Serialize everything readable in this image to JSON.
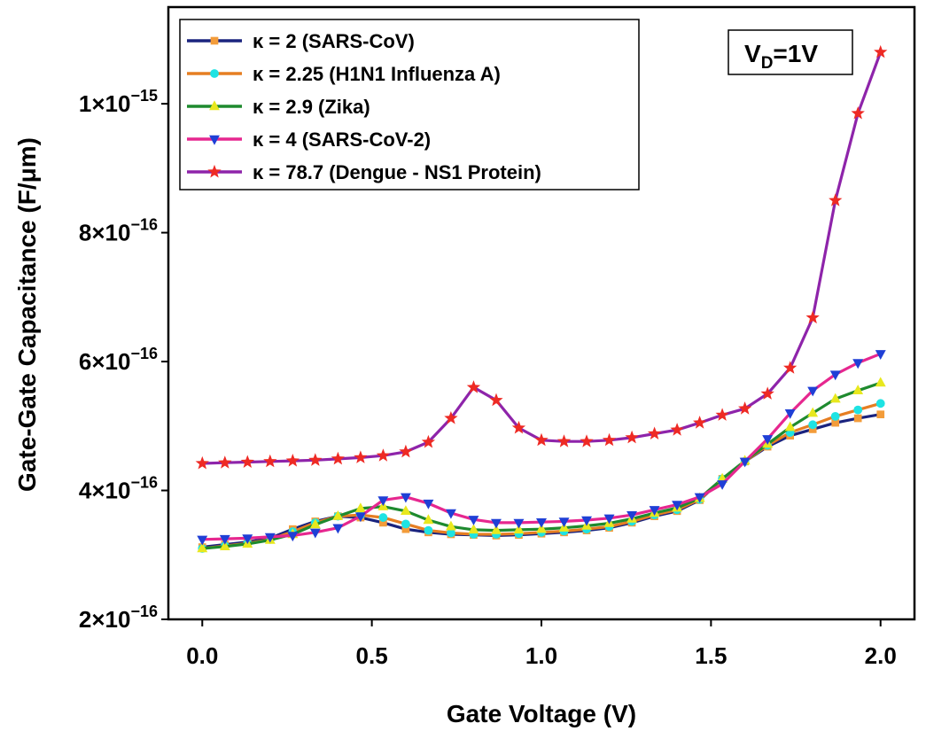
{
  "chart_data": {
    "type": "line",
    "title": "",
    "xlabel": "Gate Voltage (V)",
    "ylabel": "Gate-Gate Capacitance (F/μm)",
    "xlim": [
      -0.1,
      2.1
    ],
    "ylim": [
      2e-16,
      1.15e-15
    ],
    "x_ticks": [
      0.0,
      0.5,
      1.0,
      1.5,
      2.0
    ],
    "x_tick_labels": [
      "0.0",
      "0.5",
      "1.0",
      "1.5",
      "2.0"
    ],
    "y_ticks": [
      2e-16,
      4e-16,
      6e-16,
      8e-16,
      1e-15
    ],
    "y_tick_labels": [
      {
        "mant": "2×10",
        "exp": "−16"
      },
      {
        "mant": "4×10",
        "exp": "−16"
      },
      {
        "mant": "6×10",
        "exp": "−16"
      },
      {
        "mant": "8×10",
        "exp": "−16"
      },
      {
        "mant": "1×10",
        "exp": "−15"
      }
    ],
    "grid": false,
    "legend_position": "top-left",
    "annotation": {
      "base": "V",
      "sub": "D",
      "rest": "=1V"
    },
    "x": [
      0.0,
      0.0667,
      0.1333,
      0.2,
      0.2667,
      0.3333,
      0.4,
      0.4667,
      0.5333,
      0.6,
      0.6667,
      0.7333,
      0.8,
      0.8667,
      0.9333,
      1.0,
      1.0667,
      1.1333,
      1.2,
      1.2667,
      1.3333,
      1.4,
      1.4667,
      1.5333,
      1.6,
      1.6667,
      1.7333,
      1.8,
      1.8667,
      1.9333,
      2.0
    ],
    "series": [
      {
        "name": "κ = 2 (SARS-CoV)",
        "color": "#1a237e",
        "marker": "square",
        "marker_color": "#f39c3a",
        "values": [
          3.12e-16,
          3.16e-16,
          3.2e-16,
          3.26e-16,
          3.4e-16,
          3.52e-16,
          3.6e-16,
          3.58e-16,
          3.5e-16,
          3.4e-16,
          3.35e-16,
          3.32e-16,
          3.31e-16,
          3.3e-16,
          3.31e-16,
          3.33e-16,
          3.35e-16,
          3.38e-16,
          3.42e-16,
          3.5e-16,
          3.6e-16,
          3.68e-16,
          3.85e-16,
          4.18e-16,
          4.45e-16,
          4.68e-16,
          4.85e-16,
          4.95e-16,
          5.05e-16,
          5.12e-16,
          5.18e-16
        ]
      },
      {
        "name": "κ = 2.25 (H1N1 Influenza A)",
        "color": "#e67e22",
        "marker": "circle",
        "marker_color": "#1ee3e3",
        "values": [
          3.1e-16,
          3.14e-16,
          3.18e-16,
          3.24e-16,
          3.36e-16,
          3.5e-16,
          3.6e-16,
          3.62e-16,
          3.58e-16,
          3.48e-16,
          3.38e-16,
          3.34e-16,
          3.32e-16,
          3.32e-16,
          3.33e-16,
          3.35e-16,
          3.37e-16,
          3.4e-16,
          3.44e-16,
          3.52e-16,
          3.62e-16,
          3.7e-16,
          3.86e-16,
          4.18e-16,
          4.45e-16,
          4.7e-16,
          4.9e-16,
          5.02e-16,
          5.15e-16,
          5.25e-16,
          5.35e-16
        ]
      },
      {
        "name": "κ = 2.9 (Zika)",
        "color": "#1e8a2e",
        "marker": "triangle-up",
        "marker_color": "#e8e81e",
        "values": [
          3.1e-16,
          3.13e-16,
          3.17e-16,
          3.23e-16,
          3.32e-16,
          3.47e-16,
          3.6e-16,
          3.72e-16,
          3.75e-16,
          3.68e-16,
          3.54e-16,
          3.44e-16,
          3.39e-16,
          3.38e-16,
          3.39e-16,
          3.4e-16,
          3.42e-16,
          3.45e-16,
          3.49e-16,
          3.56e-16,
          3.65e-16,
          3.73e-16,
          3.88e-16,
          4.18e-16,
          4.46e-16,
          4.72e-16,
          4.98e-16,
          5.2e-16,
          5.42e-16,
          5.55e-16,
          5.67e-16
        ]
      },
      {
        "name": "κ = 4 (SARS-CoV-2)",
        "color": "#e6278f",
        "marker": "triangle-down",
        "marker_color": "#1f3fd6",
        "values": [
          3.24e-16,
          3.25e-16,
          3.26e-16,
          3.28e-16,
          3.3e-16,
          3.35e-16,
          3.42e-16,
          3.6e-16,
          3.85e-16,
          3.9e-16,
          3.8e-16,
          3.65e-16,
          3.55e-16,
          3.5e-16,
          3.5e-16,
          3.51e-16,
          3.52e-16,
          3.54e-16,
          3.57e-16,
          3.62e-16,
          3.7e-16,
          3.78e-16,
          3.9e-16,
          4.1e-16,
          4.45e-16,
          4.8e-16,
          5.2e-16,
          5.55e-16,
          5.8e-16,
          5.98e-16,
          6.12e-16
        ]
      },
      {
        "name": "κ = 78.7 (Dengue - NS1 Protein)",
        "color": "#8e24aa",
        "marker": "star",
        "marker_color": "#ee2a24",
        "values": [
          4.42e-16,
          4.43e-16,
          4.44e-16,
          4.45e-16,
          4.46e-16,
          4.47e-16,
          4.49e-16,
          4.51e-16,
          4.54e-16,
          4.6e-16,
          4.75e-16,
          5.12e-16,
          5.6e-16,
          5.4e-16,
          4.97e-16,
          4.78e-16,
          4.76e-16,
          4.76e-16,
          4.78e-16,
          4.82e-16,
          4.88e-16,
          4.94e-16,
          5.05e-16,
          5.17e-16,
          5.27e-16,
          5.5e-16,
          5.9e-16,
          6.68e-16,
          8.5e-16,
          9.85e-16,
          1.08e-15
        ]
      }
    ]
  }
}
